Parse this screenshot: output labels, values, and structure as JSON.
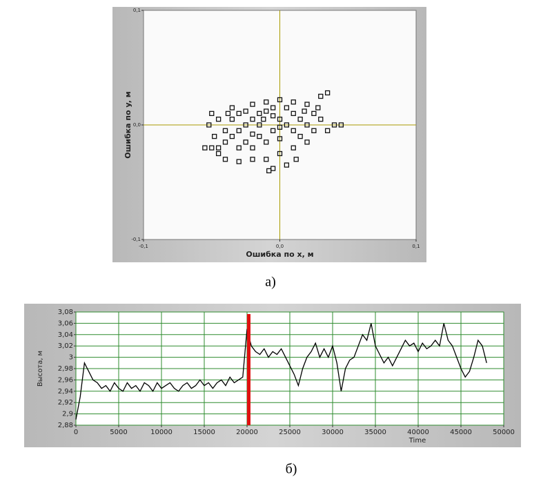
{
  "chart_data": [
    {
      "type": "scatter",
      "caption": "а)",
      "xlabel": "Ошибка по x, м",
      "ylabel": "Ошибка по y, м",
      "xlim": [
        -0.1,
        0.1
      ],
      "ylim": [
        -0.1,
        0.1
      ],
      "xticks": [
        {
          "value": -0.1,
          "label": "-0,1"
        },
        {
          "value": 0,
          "label": "0,0"
        },
        {
          "value": 0.1,
          "label": "0,1"
        }
      ],
      "yticks": [
        {
          "value": -0.1,
          "label": "-0,1"
        },
        {
          "value": 0,
          "label": "0,0"
        },
        {
          "value": 0.1,
          "label": "0,1"
        }
      ],
      "grid": false,
      "zero_line_color": "#a89a00",
      "color": "#111111",
      "x": [
        -0.03,
        -0.025,
        -0.02,
        -0.015,
        -0.01,
        -0.005,
        0,
        0.005,
        0.01,
        0.015,
        -0.035,
        -0.04,
        -0.045,
        -0.05,
        -0.055,
        -0.03,
        -0.035,
        -0.02,
        -0.01,
        0,
        0.01,
        0.02,
        0.03,
        0.035,
        0.025,
        0.03,
        0.04,
        0.045,
        0.035,
        0.02,
        0.01,
        0,
        -0.01,
        -0.02,
        -0.03,
        -0.04,
        -0.045,
        0.005,
        -0.005,
        -0.008,
        0.012,
        -0.025,
        -0.015,
        -0.005,
        -0.02,
        -0.03,
        -0.04,
        -0.045,
        -0.05,
        -0.052,
        -0.048,
        -0.035,
        -0.025,
        -0.015,
        -0.01,
        0,
        0.01,
        0.015,
        0.02,
        -0.005,
        0.005,
        -0.02,
        0.025,
        0.028,
        -0.038,
        0.018,
        -0.012,
        0
      ],
      "y": [
        -0.005,
        0,
        0.005,
        0.01,
        0.012,
        0.008,
        0.005,
        0,
        -0.005,
        -0.01,
        -0.01,
        -0.015,
        -0.02,
        -0.02,
        -0.02,
        0.01,
        0.015,
        0.018,
        0.02,
        0.022,
        0.02,
        0.018,
        0.025,
        0.028,
        0.01,
        0.005,
        0,
        0,
        -0.005,
        -0.015,
        -0.02,
        -0.025,
        -0.03,
        -0.03,
        -0.032,
        -0.03,
        -0.025,
        -0.035,
        -0.038,
        -0.04,
        -0.03,
        -0.015,
        -0.01,
        -0.005,
        -0.02,
        -0.02,
        -0.005,
        0.005,
        0.01,
        0,
        -0.01,
        0.005,
        0.012,
        0,
        -0.015,
        -0.012,
        0.01,
        0.005,
        0,
        0.015,
        0.015,
        -0.008,
        -0.005,
        0.015,
        0.01,
        0.012,
        0.005,
        -0.002
      ]
    },
    {
      "type": "line",
      "caption": "б)",
      "xlabel": "Time",
      "ylabel": "Высота, м",
      "xlim": [
        0,
        50000
      ],
      "ylim": [
        2.88,
        3.08
      ],
      "xticks": [
        0,
        5000,
        10000,
        15000,
        20000,
        25000,
        30000,
        35000,
        40000,
        45000,
        50000
      ],
      "yticks": [
        {
          "value": 2.88,
          "label": "2,88"
        },
        {
          "value": 2.9,
          "label": "2,9"
        },
        {
          "value": 2.92,
          "label": "2,92"
        },
        {
          "value": 2.94,
          "label": "2,94"
        },
        {
          "value": 2.96,
          "label": "2,96"
        },
        {
          "value": 2.98,
          "label": "2,98"
        },
        {
          "value": 3,
          "label": "3"
        },
        {
          "value": 3.02,
          "label": "3,02"
        },
        {
          "value": 3.04,
          "label": "3,04"
        },
        {
          "value": 3.06,
          "label": "3,06"
        },
        {
          "value": 3.08,
          "label": "3,08"
        }
      ],
      "grid": true,
      "grid_color": "#2e8b2e",
      "color": "#000000",
      "cursor": {
        "x": 20200,
        "color": "#e01010"
      },
      "x": [
        0,
        500,
        1000,
        1500,
        2000,
        2500,
        3000,
        3500,
        4000,
        4500,
        5000,
        5500,
        6000,
        6500,
        7000,
        7500,
        8000,
        8500,
        9000,
        9500,
        10000,
        10500,
        11000,
        11500,
        12000,
        12500,
        13000,
        13500,
        14000,
        14500,
        15000,
        15500,
        16000,
        16500,
        17000,
        17500,
        18000,
        18500,
        19000,
        19500,
        20000,
        20500,
        21000,
        21500,
        22000,
        22500,
        23000,
        23500,
        24000,
        24500,
        25000,
        25500,
        26000,
        26500,
        27000,
        27500,
        28000,
        28500,
        29000,
        29500,
        30000,
        30500,
        31000,
        31500,
        32000,
        32500,
        33000,
        33500,
        34000,
        34500,
        35000,
        35500,
        36000,
        36500,
        37000,
        37500,
        38000,
        38500,
        39000,
        39500,
        40000,
        40500,
        41000,
        41500,
        42000,
        42500,
        43000,
        43500,
        44000,
        44500,
        45000,
        45500,
        46000,
        46500,
        47000,
        47500,
        48000
      ],
      "values": [
        2.89,
        2.93,
        2.99,
        2.975,
        2.96,
        2.955,
        2.945,
        2.95,
        2.94,
        2.955,
        2.945,
        2.94,
        2.955,
        2.945,
        2.95,
        2.94,
        2.955,
        2.95,
        2.94,
        2.955,
        2.945,
        2.95,
        2.955,
        2.945,
        2.94,
        2.95,
        2.955,
        2.945,
        2.95,
        2.96,
        2.95,
        2.955,
        2.945,
        2.955,
        2.96,
        2.95,
        2.965,
        2.955,
        2.96,
        2.965,
        3.05,
        3.02,
        3.01,
        3.005,
        3.015,
        3,
        3.01,
        3.005,
        3.015,
        3,
        2.985,
        2.97,
        2.95,
        2.98,
        3,
        3.01,
        3.025,
        3,
        3.015,
        3,
        3.02,
        2.99,
        2.94,
        2.98,
        2.995,
        3,
        3.02,
        3.04,
        3.03,
        3.06,
        3.02,
        3.005,
        2.99,
        3,
        2.985,
        3,
        3.015,
        3.03,
        3.02,
        3.025,
        3.01,
        3.025,
        3.015,
        3.02,
        3.03,
        3.02,
        3.06,
        3.03,
        3.02,
        3,
        2.98,
        2.965,
        2.975,
        3,
        3.03,
        3.02,
        2.99
      ]
    }
  ]
}
